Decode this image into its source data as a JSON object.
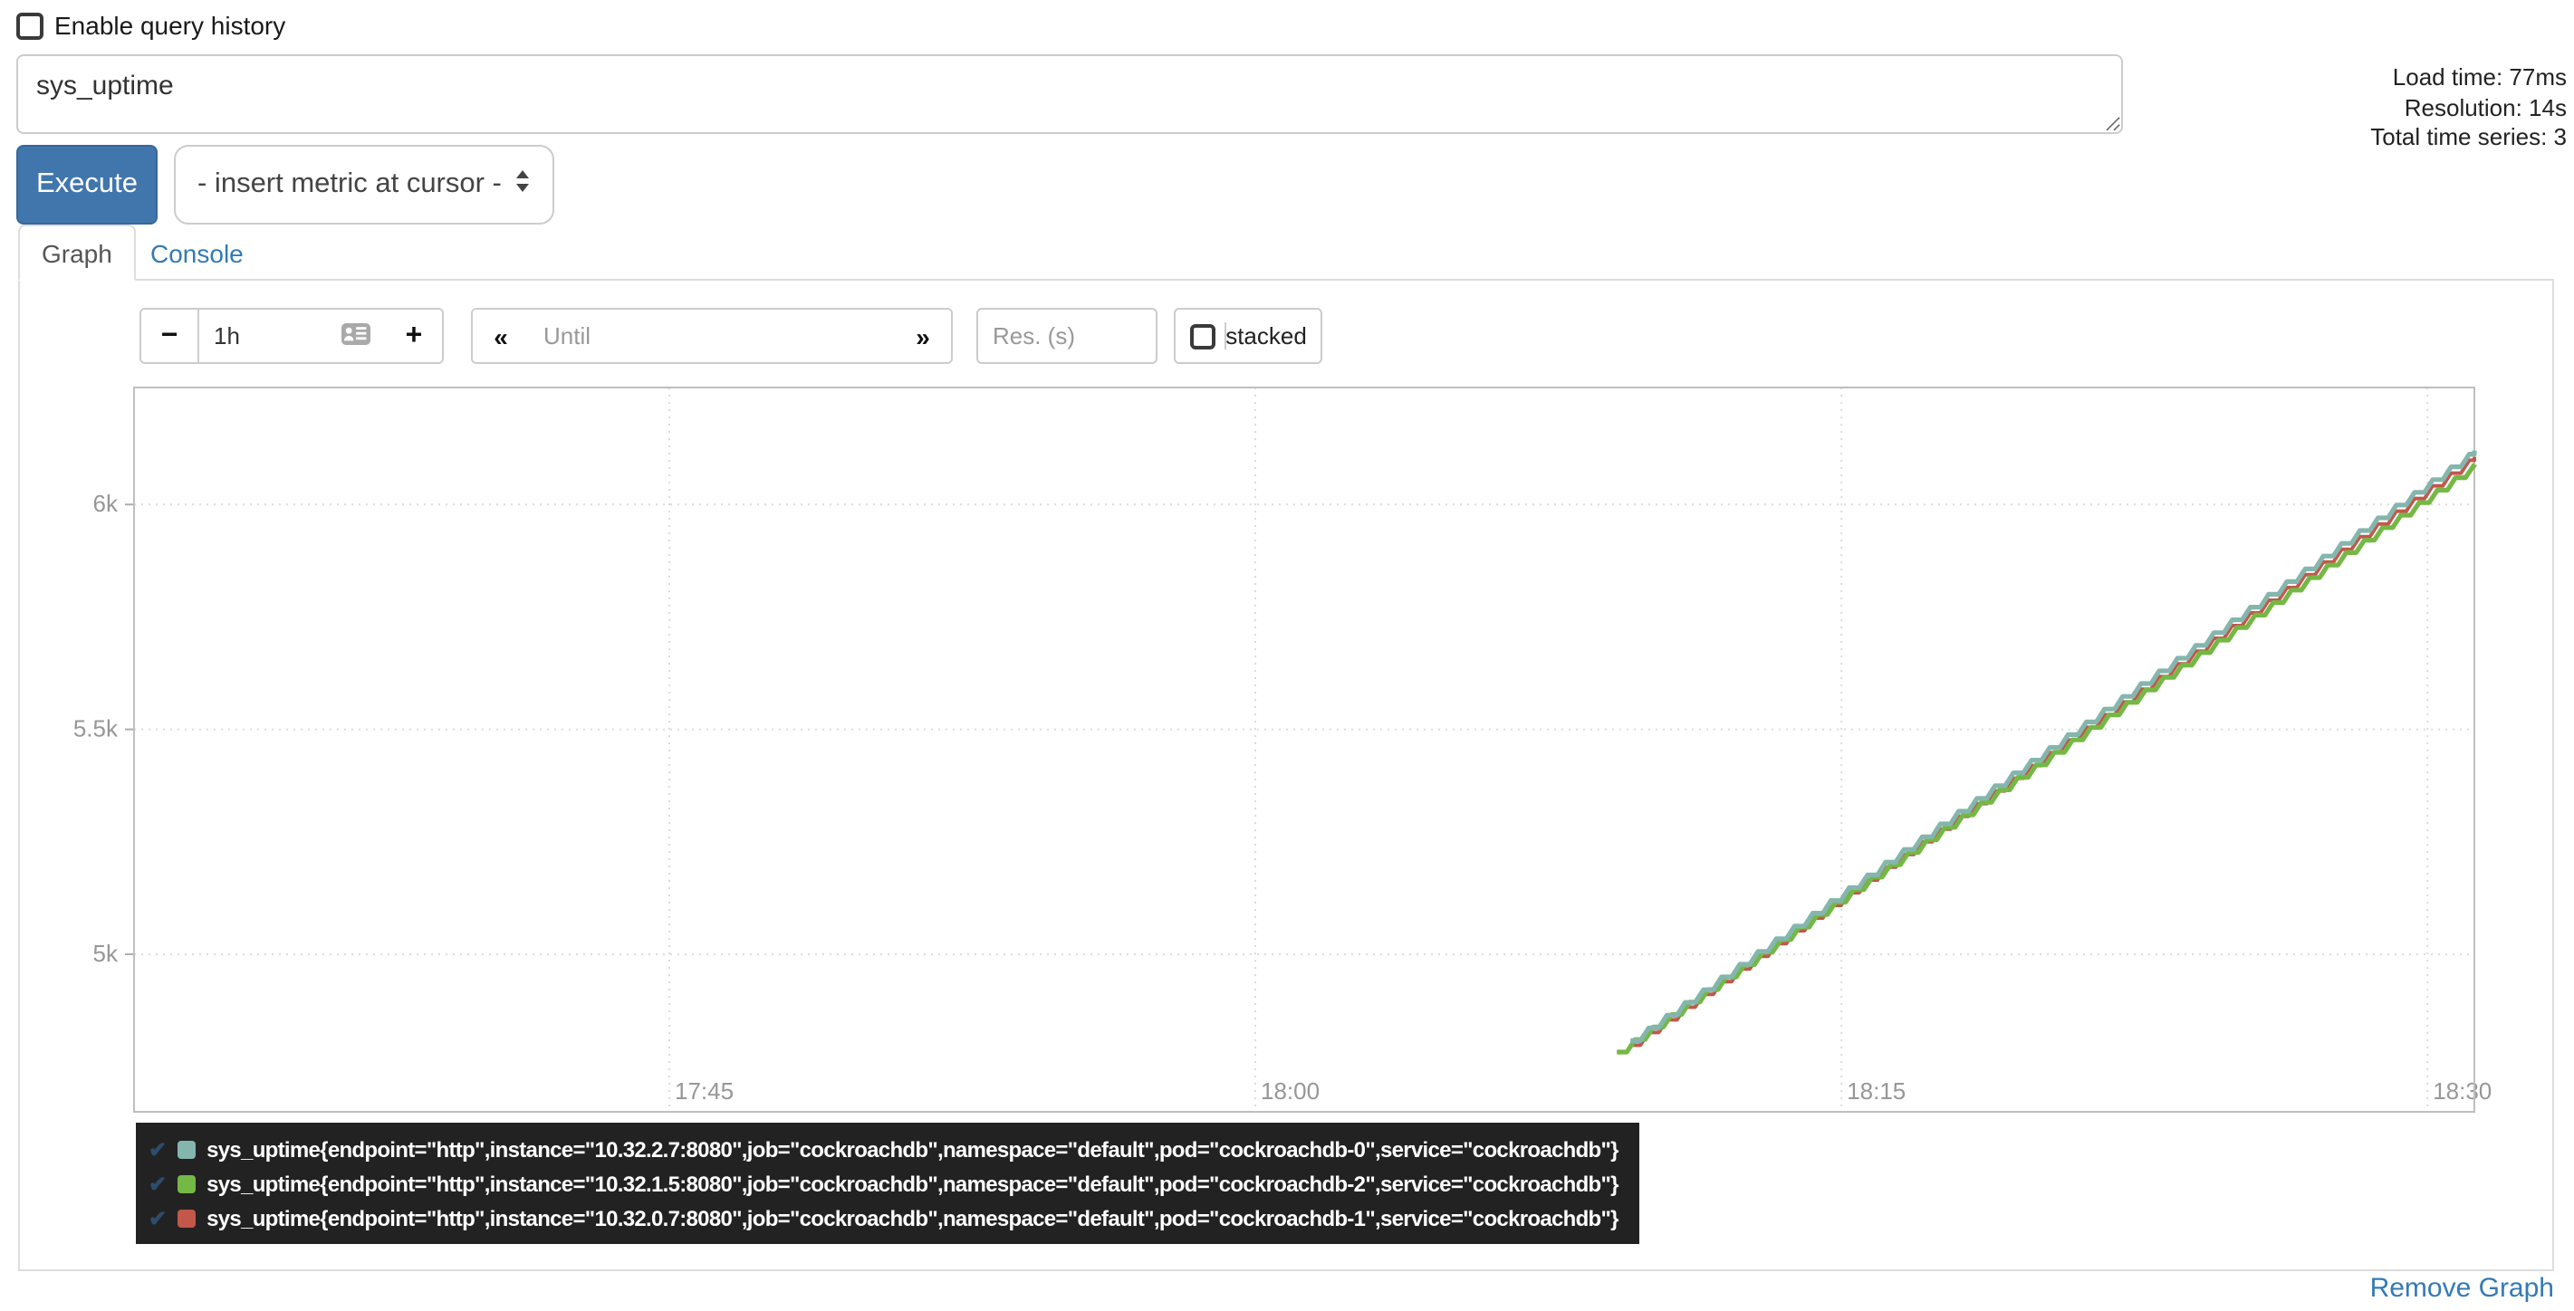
{
  "header": {
    "history_label": "Enable query history"
  },
  "query": {
    "value": "sys_uptime",
    "execute_label": "Execute",
    "insert_metric_label": "- insert metric at cursor -"
  },
  "stats": {
    "load_time": "Load time: 77ms",
    "resolution": "Resolution: 14s",
    "total_series": "Total time series: 3"
  },
  "tabs": {
    "graph": "Graph",
    "console": "Console"
  },
  "controls": {
    "minus": "−",
    "range_value": "1h",
    "plus": "+",
    "prev": "«",
    "until_placeholder": "Until",
    "next": "»",
    "res_placeholder": "Res. (s)",
    "stacked_label": "stacked"
  },
  "chart_data": {
    "type": "line",
    "stepped": true,
    "legend_position": "bottom-left",
    "legend_check": "✔",
    "x_axis": {
      "start_min": 1051.3,
      "end_min": 1111.2,
      "ticks": [
        {
          "label": "17:45",
          "min": 1065
        },
        {
          "label": "18:00",
          "min": 1080
        },
        {
          "label": "18:15",
          "min": 1095
        },
        {
          "label": "18:30",
          "min": 1110
        }
      ]
    },
    "y_axis": {
      "min": 4650,
      "max": 6260,
      "ticks": [
        {
          "label": "6k",
          "value": 6000
        },
        {
          "label": "5.5k",
          "value": 5500
        },
        {
          "label": "5k",
          "value": 5000
        }
      ]
    },
    "step_min": 0.4667,
    "series": [
      {
        "name": "sys_uptime{endpoint=\"http\",instance=\"10.32.2.7:8080\",job=\"cockroachdb\",namespace=\"default\",pod=\"cockroachdb-0\",service=\"cockroachdb\"}",
        "color": "#84b6ad",
        "start": {
          "min": 1089.6,
          "value": 4808
        },
        "end": {
          "min": 1111.2,
          "value": 6120
        },
        "width": 2.6
      },
      {
        "name": "sys_uptime{endpoint=\"http\",instance=\"10.32.1.5:8080\",job=\"cockroachdb\",namespace=\"default\",pod=\"cockroachdb-2\",service=\"cockroachdb\"}",
        "color": "#74b845",
        "start": {
          "min": 1089.25,
          "value": 4783
        },
        "end": {
          "min": 1111.2,
          "value": 6088
        },
        "width": 2.6
      },
      {
        "name": "sys_uptime{endpoint=\"http\",instance=\"10.32.0.7:8080\",job=\"cockroachdb\",namespace=\"default\",pod=\"cockroachdb-1\",service=\"cockroachdb\"}",
        "color": "#c2574a",
        "start": {
          "min": 1089.6,
          "value": 4798
        },
        "end": {
          "min": 1111.2,
          "value": 6106
        },
        "width": 2
      }
    ]
  },
  "footer": {
    "remove_graph": "Remove Graph"
  }
}
